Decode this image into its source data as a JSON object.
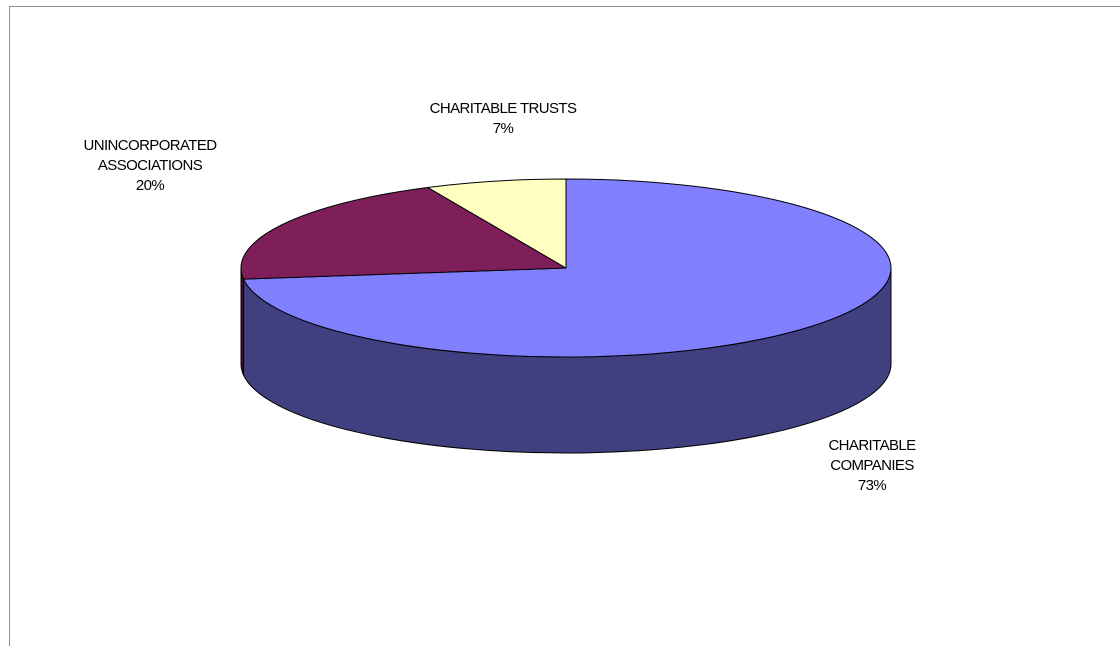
{
  "chart_data": {
    "type": "pie",
    "three_d": true,
    "slices": [
      {
        "label": [
          "CHARITABLE",
          "COMPANIES"
        ],
        "percent_label": "73%",
        "value": 73,
        "color": "#8080ff",
        "side_color": "#404080"
      },
      {
        "label": [
          "UNINCORPORATED",
          "ASSOCIATIONS"
        ],
        "percent_label": "20%",
        "value": 20,
        "color": "#7f1f5a",
        "side_color": "#3f0f2d"
      },
      {
        "label": [
          "CHARITABLE TRUSTS"
        ],
        "percent_label": "7%",
        "value": 7,
        "color": "#ffffc0",
        "side_color": "#808060"
      }
    ],
    "legend": "none"
  }
}
